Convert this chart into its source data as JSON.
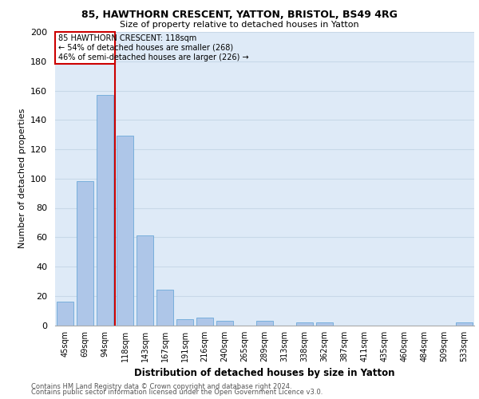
{
  "title": "85, HAWTHORN CRESCENT, YATTON, BRISTOL, BS49 4RG",
  "subtitle": "Size of property relative to detached houses in Yatton",
  "xlabel": "Distribution of detached houses by size in Yatton",
  "ylabel": "Number of detached properties",
  "categories": [
    "45sqm",
    "69sqm",
    "94sqm",
    "118sqm",
    "143sqm",
    "167sqm",
    "191sqm",
    "216sqm",
    "240sqm",
    "265sqm",
    "289sqm",
    "313sqm",
    "338sqm",
    "362sqm",
    "387sqm",
    "411sqm",
    "435sqm",
    "460sqm",
    "484sqm",
    "509sqm",
    "533sqm"
  ],
  "values": [
    16,
    98,
    157,
    129,
    61,
    24,
    4,
    5,
    3,
    0,
    3,
    0,
    2,
    2,
    0,
    0,
    0,
    0,
    0,
    0,
    2
  ],
  "bar_color": "#aec6e8",
  "bar_edge_color": "#5a9fd4",
  "red_line_x": 2.5,
  "annotation_line1": "85 HAWTHORN CRESCENT: 118sqm",
  "annotation_line2": "← 54% of detached houses are smaller (268)",
  "annotation_line3": "46% of semi-detached houses are larger (226) →",
  "annotation_box_color": "#cc0000",
  "vline_color": "#cc0000",
  "ylim": [
    0,
    200
  ],
  "yticks": [
    0,
    20,
    40,
    60,
    80,
    100,
    120,
    140,
    160,
    180,
    200
  ],
  "grid_color": "#c8d8e8",
  "background_color": "#deeaf7",
  "footer_line1": "Contains HM Land Registry data © Crown copyright and database right 2024.",
  "footer_line2": "Contains public sector information licensed under the Open Government Licence v3.0."
}
